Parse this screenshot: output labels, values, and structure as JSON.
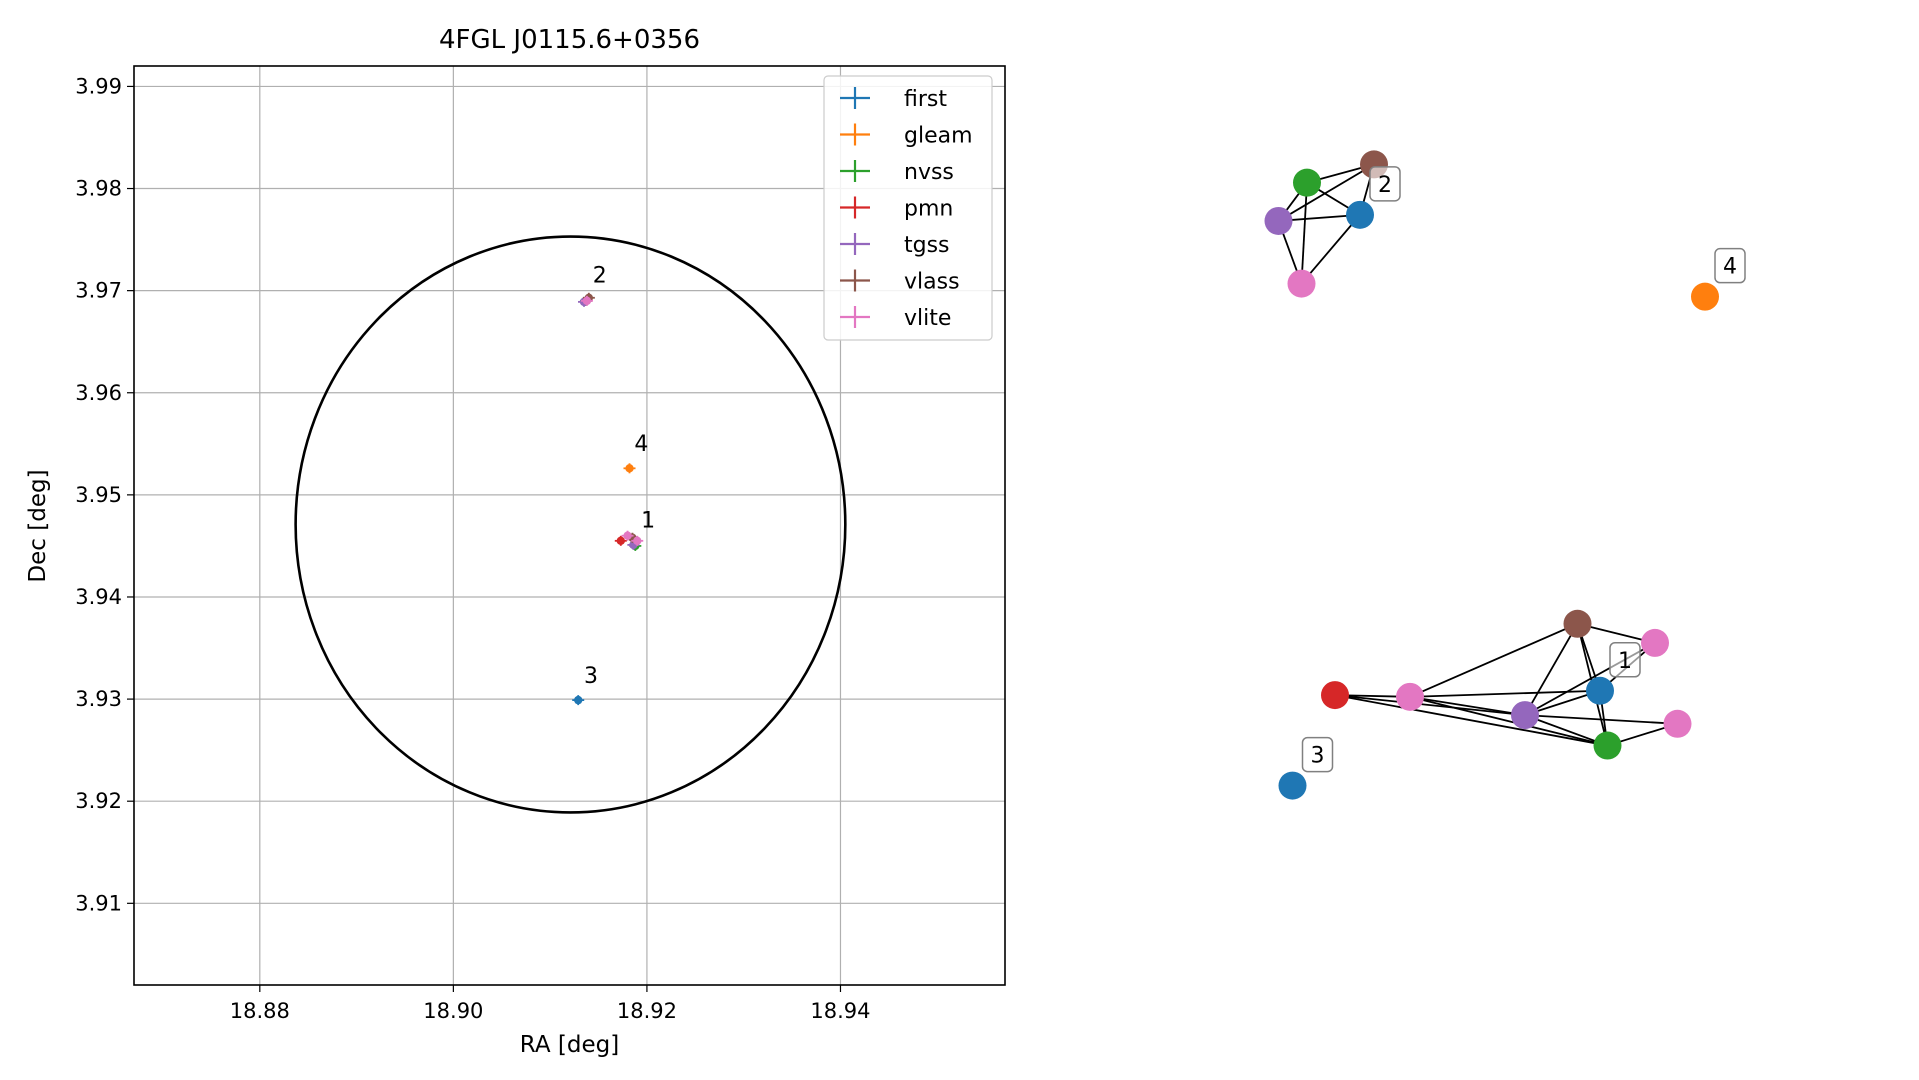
{
  "chart_data": [
    {
      "type": "scatter",
      "title": "4FGL J0115.6+0356",
      "xlabel": "RA [deg]",
      "ylabel": "Dec [deg]",
      "xlim": [
        18.867,
        18.957
      ],
      "ylim": [
        3.902,
        3.992
      ],
      "xticks": [
        "18.88",
        "18.90",
        "18.92",
        "18.94"
      ],
      "xtick_values": [
        18.88,
        18.9,
        18.92,
        18.94
      ],
      "yticks": [
        "3.91",
        "3.92",
        "3.93",
        "3.94",
        "3.95",
        "3.96",
        "3.97",
        "3.98",
        "3.99"
      ],
      "ytick_values": [
        3.91,
        3.92,
        3.93,
        3.94,
        3.95,
        3.96,
        3.97,
        3.98,
        3.99
      ],
      "grid": true,
      "legend_position": "top-right",
      "ellipse": {
        "center_ra": 18.9121,
        "center_dec": 3.9471,
        "semi_ra": 0.0284,
        "semi_dec": 0.0282,
        "color": "#000000"
      },
      "series": [
        {
          "name": "first",
          "color": "#1f77b4",
          "points": [
            {
              "ra": 18.9129,
              "dec": 3.9299
            }
          ]
        },
        {
          "name": "gleam",
          "color": "#ff7f0e",
          "points": [
            {
              "ra": 18.9182,
              "dec": 3.9526
            }
          ]
        },
        {
          "name": "nvss",
          "color": "#2ca02c",
          "points": [
            {
              "ra": 18.9188,
              "dec": 3.945
            },
            {
              "ra": 18.9137,
              "dec": 3.969
            }
          ]
        },
        {
          "name": "pmn",
          "color": "#d62728",
          "points": [
            {
              "ra": 18.9173,
              "dec": 3.9455
            }
          ]
        },
        {
          "name": "tgss",
          "color": "#9467bd",
          "points": [
            {
              "ra": 18.9186,
              "dec": 3.9451
            },
            {
              "ra": 18.9135,
              "dec": 3.9689
            }
          ]
        },
        {
          "name": "vlass",
          "color": "#8c564b",
          "points": [
            {
              "ra": 18.9185,
              "dec": 3.9458
            },
            {
              "ra": 18.914,
              "dec": 3.9693
            }
          ]
        },
        {
          "name": "vlite",
          "color": "#e377c2",
          "points": [
            {
              "ra": 18.918,
              "dec": 3.946
            },
            {
              "ra": 18.919,
              "dec": 3.9455
            },
            {
              "ra": 18.9138,
              "dec": 3.969
            }
          ]
        }
      ],
      "annotations": [
        {
          "text": "1",
          "ra": 18.9194,
          "dec": 3.9468
        },
        {
          "text": "2",
          "ra": 18.9144,
          "dec": 3.9708
        },
        {
          "text": "3",
          "ra": 18.9135,
          "dec": 3.9316
        },
        {
          "text": "4",
          "ra": 18.9187,
          "dec": 3.9543
        }
      ]
    },
    {
      "type": "network",
      "nodes": [
        {
          "id": "g1-vlass",
          "color": "#8c564b",
          "x": 0.695,
          "y": 0.352
        },
        {
          "id": "g1-vlite-a",
          "color": "#e377c2",
          "x": 0.85,
          "y": 0.33
        },
        {
          "id": "g1-first",
          "color": "#1f77b4",
          "x": 0.74,
          "y": 0.275,
          "label": "1"
        },
        {
          "id": "g1-pmn",
          "color": "#d62728",
          "x": 0.21,
          "y": 0.27
        },
        {
          "id": "g1-vlite-b",
          "color": "#e377c2",
          "x": 0.36,
          "y": 0.268
        },
        {
          "id": "g1-tgss",
          "color": "#9467bd",
          "x": 0.59,
          "y": 0.247
        },
        {
          "id": "g1-vlite-c",
          "color": "#e377c2",
          "x": 0.895,
          "y": 0.237
        },
        {
          "id": "g1-nvss",
          "color": "#2ca02c",
          "x": 0.755,
          "y": 0.212
        },
        {
          "id": "g2-vlass",
          "color": "#8c564b",
          "x": 0.288,
          "y": 0.88
        },
        {
          "id": "g2-nvss",
          "color": "#2ca02c",
          "x": 0.154,
          "y": 0.859
        },
        {
          "id": "g2-first",
          "color": "#1f77b4",
          "x": 0.26,
          "y": 0.822,
          "label": "2"
        },
        {
          "id": "g2-tgss",
          "color": "#9467bd",
          "x": 0.097,
          "y": 0.815
        },
        {
          "id": "g2-vlite",
          "color": "#e377c2",
          "x": 0.143,
          "y": 0.743
        },
        {
          "id": "iso-first",
          "color": "#1f77b4",
          "x": 0.125,
          "y": 0.166,
          "label": "3"
        },
        {
          "id": "iso-gleam",
          "color": "#ff7f0e",
          "x": 0.95,
          "y": 0.728,
          "label": "4"
        }
      ],
      "edges": [
        [
          "g1-vlass",
          "g1-vlite-a"
        ],
        [
          "g1-vlass",
          "g1-first"
        ],
        [
          "g1-vlass",
          "g1-vlite-b"
        ],
        [
          "g1-vlass",
          "g1-tgss"
        ],
        [
          "g1-vlass",
          "g1-nvss"
        ],
        [
          "g1-vlite-a",
          "g1-first"
        ],
        [
          "g1-vlite-a",
          "g1-tgss"
        ],
        [
          "g1-first",
          "g1-vlite-b"
        ],
        [
          "g1-first",
          "g1-tgss"
        ],
        [
          "g1-first",
          "g1-nvss"
        ],
        [
          "g1-pmn",
          "g1-vlite-b"
        ],
        [
          "g1-pmn",
          "g1-tgss"
        ],
        [
          "g1-pmn",
          "g1-nvss"
        ],
        [
          "g1-vlite-b",
          "g1-tgss"
        ],
        [
          "g1-vlite-b",
          "g1-nvss"
        ],
        [
          "g1-tgss",
          "g1-nvss"
        ],
        [
          "g1-tgss",
          "g1-vlite-c"
        ],
        [
          "g1-nvss",
          "g1-vlite-c"
        ],
        [
          "g2-vlass",
          "g2-nvss"
        ],
        [
          "g2-vlass",
          "g2-first"
        ],
        [
          "g2-vlass",
          "g2-tgss"
        ],
        [
          "g2-nvss",
          "g2-first"
        ],
        [
          "g2-nvss",
          "g2-tgss"
        ],
        [
          "g2-nvss",
          "g2-vlite"
        ],
        [
          "g2-first",
          "g2-tgss"
        ],
        [
          "g2-first",
          "g2-vlite"
        ],
        [
          "g2-tgss",
          "g2-vlite"
        ]
      ]
    }
  ]
}
